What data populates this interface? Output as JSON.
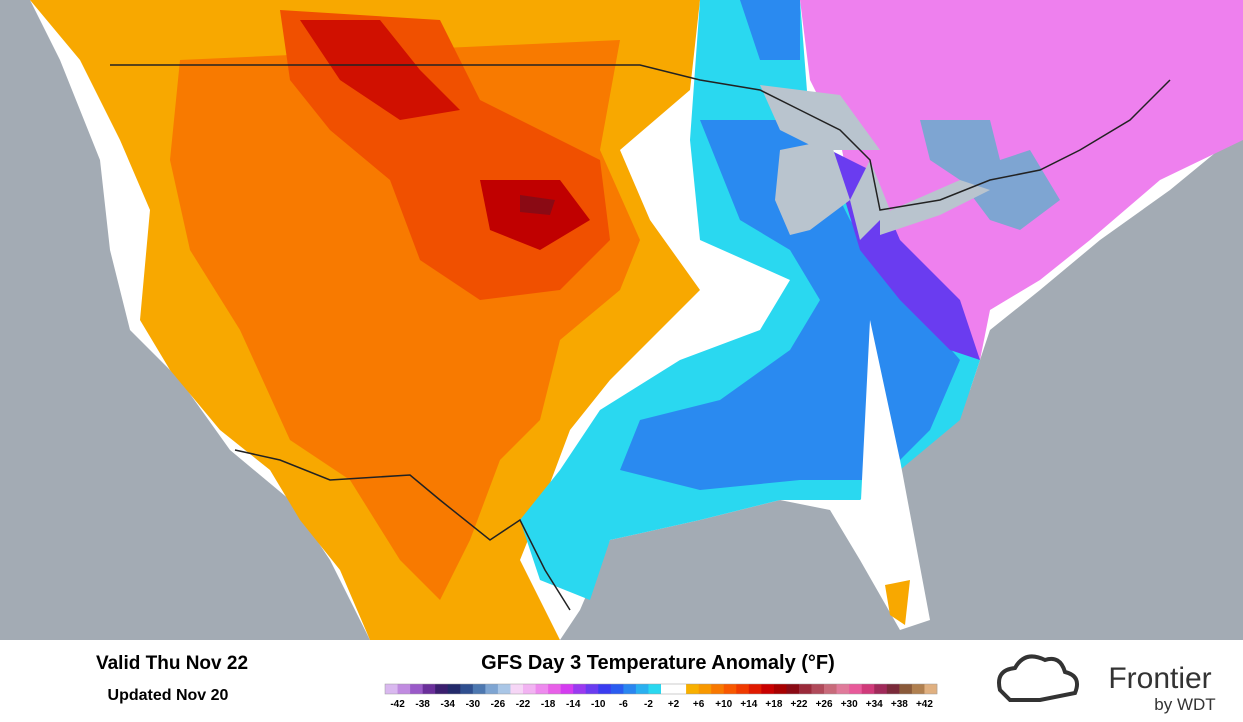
{
  "valid": "Valid Thu Nov 22",
  "updated": "Updated Nov 20",
  "title": "GFS Day 3 Temperature Anomaly (°F)",
  "legend": {
    "colors": [
      "#d9b8ef",
      "#c08be0",
      "#9a5ac8",
      "#6a2f9a",
      "#3b1f6e",
      "#232a6a",
      "#2f4f8f",
      "#4d78b0",
      "#7ea5d2",
      "#a9c6e6",
      "#f6d6f6",
      "#f2b3f2",
      "#ee8aee",
      "#e860e8",
      "#d43cf0",
      "#9a3af0",
      "#6a3cf0",
      "#3a3cf0",
      "#2a5cf0",
      "#2a86f0",
      "#2ab0f0",
      "#2ad8f0",
      "#ffffff",
      "#ffffff",
      "#f8b000",
      "#f89800",
      "#f87800",
      "#f85800",
      "#f03a00",
      "#e01a00",
      "#c80000",
      "#a80000",
      "#8a0a14",
      "#9a2a3a",
      "#b04a5a",
      "#c86a7a",
      "#e07a9a",
      "#e85a9a",
      "#d03a7a",
      "#a02a5a",
      "#7a2a3a",
      "#8a5a3a",
      "#b08050",
      "#e0b080"
    ],
    "labels": [
      "-42",
      "-38",
      "-34",
      "-30",
      "-26",
      "-22",
      "-18",
      "-14",
      "-10",
      "-6",
      "-2",
      "+2",
      "+6",
      "+10",
      "+14",
      "+18",
      "+22",
      "+26",
      "+30",
      "+34",
      "+38",
      "+42"
    ]
  },
  "logo": {
    "name": "Frontier",
    "byline": "by WDT"
  }
}
